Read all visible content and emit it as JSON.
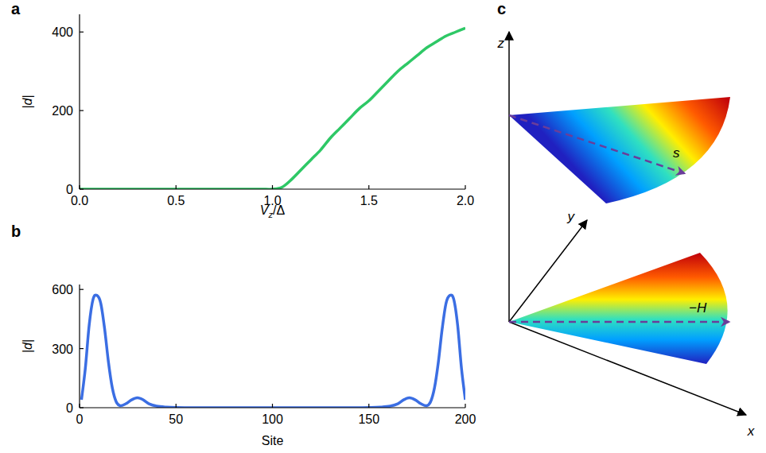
{
  "chart_data": [
    {
      "type": "line",
      "panel": "a",
      "xlabel": "Vz/Δ",
      "ylabel": "|d|",
      "x": [
        0,
        0.05,
        0.1,
        0.15,
        0.2,
        0.25,
        0.3,
        0.35,
        0.4,
        0.45,
        0.5,
        0.55,
        0.6,
        0.65,
        0.7,
        0.75,
        0.8,
        0.85,
        0.9,
        0.95,
        1.0,
        1.05,
        1.1,
        1.15,
        1.2,
        1.25,
        1.3,
        1.35,
        1.4,
        1.45,
        1.5,
        1.55,
        1.6,
        1.65,
        1.7,
        1.75,
        1.8,
        1.85,
        1.9,
        1.95,
        2.0
      ],
      "series": [
        {
          "name": "|d|",
          "color": "#2ec866",
          "values": [
            0,
            0,
            0,
            0,
            0,
            0,
            0,
            0,
            0,
            0,
            0,
            0,
            0,
            0,
            0,
            0,
            0,
            0,
            0,
            0,
            0,
            5,
            25,
            50,
            75,
            100,
            130,
            155,
            180,
            205,
            225,
            250,
            275,
            300,
            320,
            340,
            360,
            375,
            390,
            400,
            410
          ]
        }
      ],
      "xlim": [
        0,
        2
      ],
      "ylim": [
        0,
        445
      ],
      "xticks": [
        {
          "value": 0,
          "label": "0.0"
        },
        {
          "value": 0.5,
          "label": "0.5"
        },
        {
          "value": 1,
          "label": "1.0"
        },
        {
          "value": 1.5,
          "label": "1.5"
        },
        {
          "value": 2,
          "label": "2.0"
        }
      ],
      "yticks": [
        0,
        200,
        400
      ],
      "grid": false
    },
    {
      "type": "line",
      "panel": "b",
      "xlabel": "Site",
      "ylabel": "|d|",
      "x": [
        1,
        3,
        5,
        7,
        9,
        11,
        13,
        15,
        17,
        19,
        21,
        24,
        27,
        30,
        33,
        36,
        40,
        45,
        50,
        60,
        80,
        100,
        120,
        141,
        151,
        156,
        161,
        165,
        168,
        171,
        174,
        177,
        180,
        182,
        184,
        186,
        188,
        190,
        192,
        194,
        196,
        198,
        200
      ],
      "series": [
        {
          "name": "|d|",
          "color": "#3b6ee3",
          "values": [
            40,
            200,
            420,
            550,
            570,
            530,
            400,
            230,
            100,
            30,
            10,
            20,
            40,
            50,
            40,
            20,
            8,
            3,
            1,
            0,
            0,
            0,
            0,
            0,
            1,
            3,
            8,
            20,
            40,
            50,
            40,
            20,
            10,
            30,
            100,
            230,
            400,
            530,
            570,
            550,
            420,
            200,
            40
          ]
        }
      ],
      "xlim": [
        0,
        200
      ],
      "ylim": [
        0,
        625
      ],
      "xticks": [
        0,
        50,
        100,
        150,
        200
      ],
      "yticks": [
        0,
        300,
        600
      ],
      "grid": false
    }
  ],
  "diagram": {
    "panel": "c",
    "axis_labels": [
      "z",
      "y",
      "x"
    ],
    "vector_labels": [
      "s",
      "−H"
    ]
  }
}
